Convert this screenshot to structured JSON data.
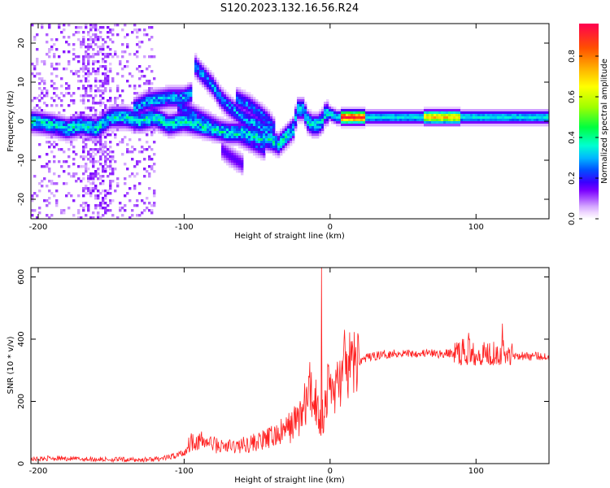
{
  "figure": {
    "title": "S120.2023.132.16.56.R24"
  },
  "chart_data": [
    {
      "type": "heatmap",
      "xlabel": "Height of straight line (km)",
      "ylabel": "Frequency (Hz)",
      "xlim": [
        -205,
        150
      ],
      "ylim": [
        -25,
        25
      ],
      "xticks": [
        -200,
        -100,
        0,
        100
      ],
      "yticks": [
        -20,
        -10,
        0,
        10,
        20
      ],
      "colorbar": {
        "label": "Normalized spectral amplitude",
        "range": [
          0,
          0.96
        ],
        "ticks": [
          0.0,
          0.2,
          0.4,
          0.6,
          0.8
        ],
        "colors": [
          "#ffffff",
          "#f0d8ff",
          "#d4a8ff",
          "#a850ff",
          "#7a00ff",
          "#3a00ff",
          "#0050ff",
          "#00b8ff",
          "#00ffd0",
          "#00ff40",
          "#a0ff00",
          "#ffff00",
          "#ffb000",
          "#ff5000",
          "#ff0050"
        ],
        "color_stops": [
          0,
          0.03,
          0.06,
          0.1,
          0.14,
          0.18,
          0.24,
          0.3,
          0.36,
          0.45,
          0.55,
          0.65,
          0.74,
          0.84,
          0.96
        ]
      },
      "ridges": [
        {
          "name": "main",
          "points": [
            [
              -205,
              0
            ],
            [
              -190,
              -1
            ],
            [
              -180,
              -2
            ],
            [
              -170,
              -1
            ],
            [
              -160,
              -2
            ],
            [
              -150,
              1
            ],
            [
              -140,
              1
            ],
            [
              -130,
              0
            ],
            [
              -120,
              1
            ],
            [
              -110,
              -1
            ],
            [
              -100,
              0
            ],
            [
              -90,
              -1
            ],
            [
              -80,
              -2
            ],
            [
              -70,
              -3
            ],
            [
              -60,
              -3
            ],
            [
              -50,
              -4
            ],
            [
              -40,
              -5
            ],
            [
              -35,
              -6
            ],
            [
              -30,
              -4
            ],
            [
              -25,
              -2
            ],
            [
              -22,
              3
            ],
            [
              -18,
              3
            ],
            [
              -15,
              0
            ],
            [
              -12,
              -1
            ],
            [
              -8,
              -1
            ],
            [
              -5,
              0
            ],
            [
              -3,
              2
            ],
            [
              0,
              2
            ],
            [
              5,
              1
            ],
            [
              20,
              1
            ],
            [
              40,
              1
            ],
            [
              60,
              1
            ],
            [
              80,
              1
            ],
            [
              100,
              1
            ],
            [
              120,
              1
            ],
            [
              150,
              1
            ]
          ],
          "amp": 0.34
        },
        {
          "name": "branch-upper",
          "points": [
            [
              -135,
              3
            ],
            [
              -125,
              5
            ],
            [
              -110,
              6
            ],
            [
              -100,
              6
            ],
            [
              -95,
              7
            ]
          ],
          "amp": 0.28
        },
        {
          "name": "branch-diagonal-1",
          "points": [
            [
              -92,
              14
            ],
            [
              -85,
              11
            ],
            [
              -80,
              9
            ],
            [
              -75,
              6
            ],
            [
              -70,
              4
            ],
            [
              -60,
              1
            ],
            [
              -50,
              -1
            ],
            [
              -40,
              -3
            ]
          ],
          "amp": 0.27
        },
        {
          "name": "branch-diagonal-2",
          "points": [
            [
              -105,
              4
            ],
            [
              -95,
              2
            ],
            [
              -85,
              0
            ],
            [
              -75,
              -2
            ],
            [
              -65,
              -3
            ],
            [
              -55,
              -5
            ],
            [
              -45,
              -7
            ]
          ],
          "amp": 0.22
        },
        {
          "name": "branch-diagonal-3",
          "points": [
            [
              -65,
              6
            ],
            [
              -55,
              4
            ],
            [
              -48,
              2
            ],
            [
              -42,
              0
            ],
            [
              -38,
              -2
            ]
          ],
          "amp": 0.24
        },
        {
          "name": "lower-tail",
          "points": [
            [
              -75,
              -7
            ],
            [
              -68,
              -9
            ],
            [
              -60,
              -11
            ]
          ],
          "amp": 0.16
        },
        {
          "name": "core-hot",
          "points": [
            [
              8,
              1
            ],
            [
              25,
              1
            ]
          ],
          "amp": 0.9
        },
        {
          "name": "core-hot-2",
          "points": [
            [
              65,
              1
            ],
            [
              90,
              1
            ]
          ],
          "amp": 0.7
        }
      ]
    },
    {
      "type": "line",
      "xlabel": "Height of straight line (km)",
      "ylabel": "SNR (10 * v/v)",
      "xlim": [
        -205,
        150
      ],
      "ylim": [
        0,
        630
      ],
      "xticks": [
        -200,
        -100,
        0,
        100
      ],
      "yticks": [
        0,
        200,
        400,
        600
      ],
      "color": "#ff2020",
      "series": [
        {
          "x": [
            -205,
            -190,
            -175,
            -160,
            -145,
            -130,
            -120,
            -110,
            -100,
            -95,
            -85,
            -75,
            -65,
            -55,
            -45,
            -35,
            -28,
            -22,
            -18,
            -14,
            -10,
            -8,
            -6,
            -4,
            -2,
            0,
            3,
            6,
            10,
            14,
            18,
            25,
            35,
            45,
            55,
            65,
            75,
            85,
            95,
            105,
            115,
            125,
            135,
            150
          ],
          "values": [
            14,
            18,
            15,
            14,
            13,
            12,
            14,
            20,
            35,
            75,
            70,
            55,
            55,
            65,
            75,
            95,
            115,
            145,
            175,
            230,
            210,
            160,
            140,
            170,
            230,
            250,
            235,
            265,
            300,
            315,
            325,
            340,
            350,
            355,
            355,
            355,
            352,
            355,
            360,
            355,
            360,
            350,
            345,
            345
          ]
        }
      ],
      "spikes": [
        {
          "x": -6,
          "value": 630
        },
        {
          "x": 10,
          "value": 430
        },
        {
          "x": 95,
          "value": 420
        },
        {
          "x": 118,
          "value": 450
        }
      ]
    }
  ]
}
